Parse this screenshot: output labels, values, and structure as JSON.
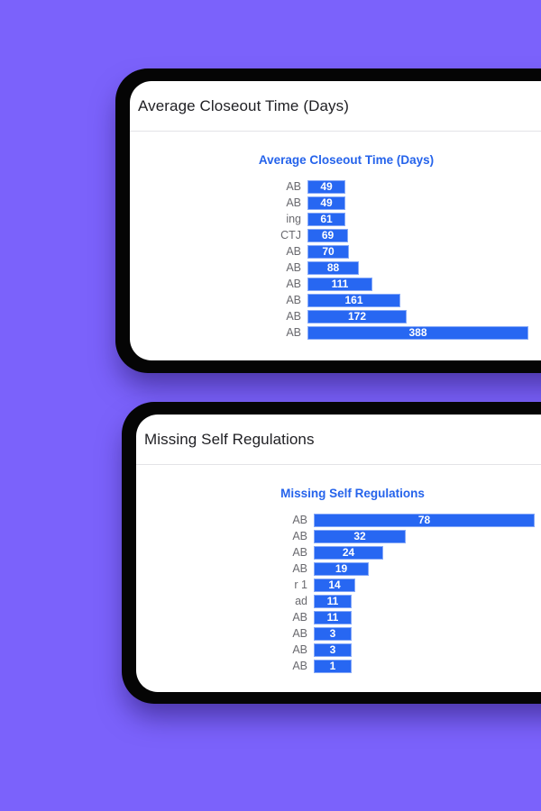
{
  "colors": {
    "background": "#7b62fb",
    "device_frame": "#050505",
    "card_background": "#ffffff",
    "chart_title": "#2563eb",
    "bar_fill": "#2767f2",
    "bar_border": "#85a8f8",
    "bar_value_text": "#ffffff",
    "category_label_text": "#6a6a6f",
    "card_header_text": "#1f1f23"
  },
  "cards": [
    {
      "header": "Average Closeout Time (Days)"
    },
    {
      "header": "Missing Self Regulations"
    }
  ],
  "chart_data": [
    {
      "type": "bar",
      "orientation": "horizontal",
      "title": "Average Closeout Time (Days)",
      "categories": [
        "AB",
        "AB",
        "ing",
        "CTJ",
        "AB",
        "AB",
        "AB",
        "AB",
        "AB",
        "AB"
      ],
      "values": [
        49,
        49,
        61,
        69,
        70,
        88,
        111,
        161,
        172,
        388
      ],
      "value_labels_inside_bars": true,
      "xlim": [
        0,
        388
      ],
      "grid": false,
      "legend": false
    },
    {
      "type": "bar",
      "orientation": "horizontal",
      "title": "Missing Self Regulations",
      "categories": [
        "AB",
        "AB",
        "AB",
        "AB",
        "r 1",
        "ad",
        "AB",
        "AB",
        "AB",
        "AB"
      ],
      "values": [
        78,
        32,
        24,
        19,
        14,
        11,
        11,
        3,
        3,
        1
      ],
      "value_labels_inside_bars": true,
      "xlim": [
        0,
        78
      ],
      "grid": false,
      "legend": false
    }
  ]
}
